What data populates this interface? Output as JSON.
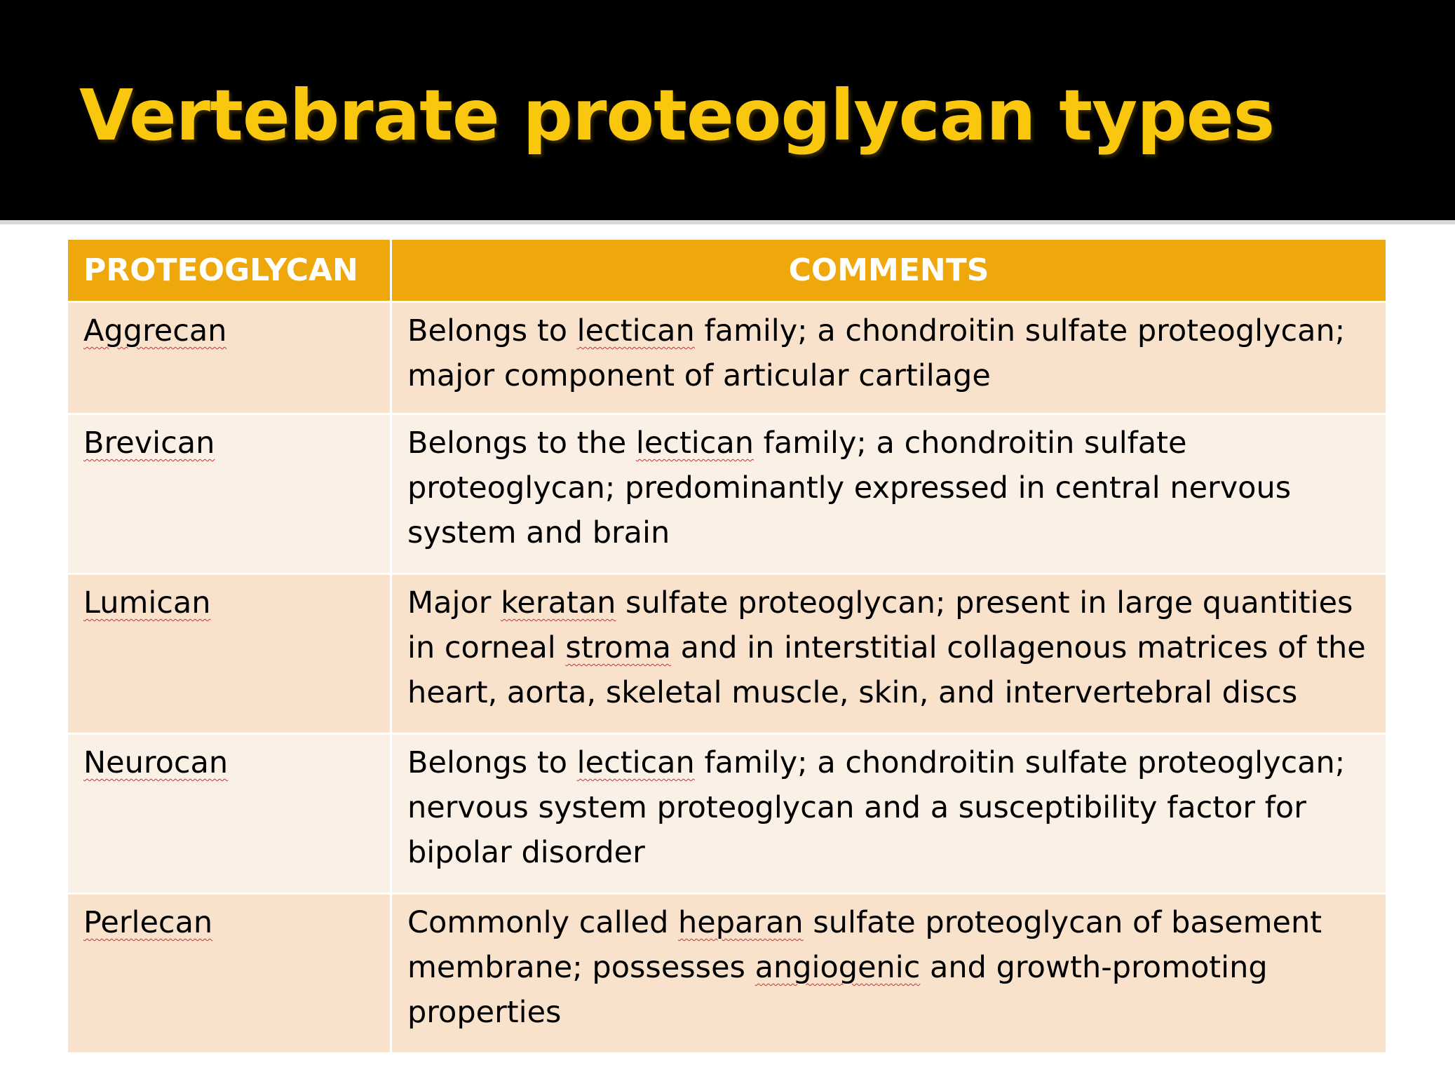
{
  "slide": {
    "title": "Vertebrate proteoglycan types"
  },
  "table": {
    "headers": {
      "proteoglycan": "PROTEOGLYCAN",
      "comments": "COMMENTS"
    },
    "rows": [
      {
        "name": "Aggrecan",
        "comment": {
          "a": "Belongs to ",
          "mark": "lectican",
          "b": " family; a chondroitin sulfate proteoglycan; major component of articular cartilage"
        }
      },
      {
        "name": "Brevican",
        "comment": {
          "a": "Belongs to the ",
          "mark": "lectican",
          "b": " family; a chondroitin sulfate proteoglycan; predominantly expressed in central nervous system and brain"
        }
      },
      {
        "name": "Lumican",
        "comment": {
          "a": "Major ",
          "mark": "keratan",
          "b": " sulfate proteoglycan; present in large quantities in corneal ",
          "mark2": "stroma",
          "c": " and in interstitial collagenous matrices of the heart, aorta, skeletal muscle, skin, and intervertebral discs"
        }
      },
      {
        "name": "Neurocan",
        "comment": {
          "a": "Belongs to ",
          "mark": "lectican",
          "b": " family; a chondroitin sulfate proteoglycan; nervous system proteoglycan and a susceptibility factor for bipolar disorder"
        }
      },
      {
        "name": "Perlecan",
        "comment": {
          "a": "Commonly called ",
          "mark": "heparan",
          "b": " sulfate proteoglycan of basement membrane; possesses ",
          "mark2": "angiogenic",
          "c": " and growth-promoting properties"
        }
      }
    ]
  },
  "colors": {
    "title_bar": "#000000",
    "title_text": "#f9c80e",
    "header_fill": "#efa80c",
    "row_dark": "#f9e2cc",
    "row_light": "#fbf0e6",
    "spellcheck_underline": "#d8262f"
  }
}
